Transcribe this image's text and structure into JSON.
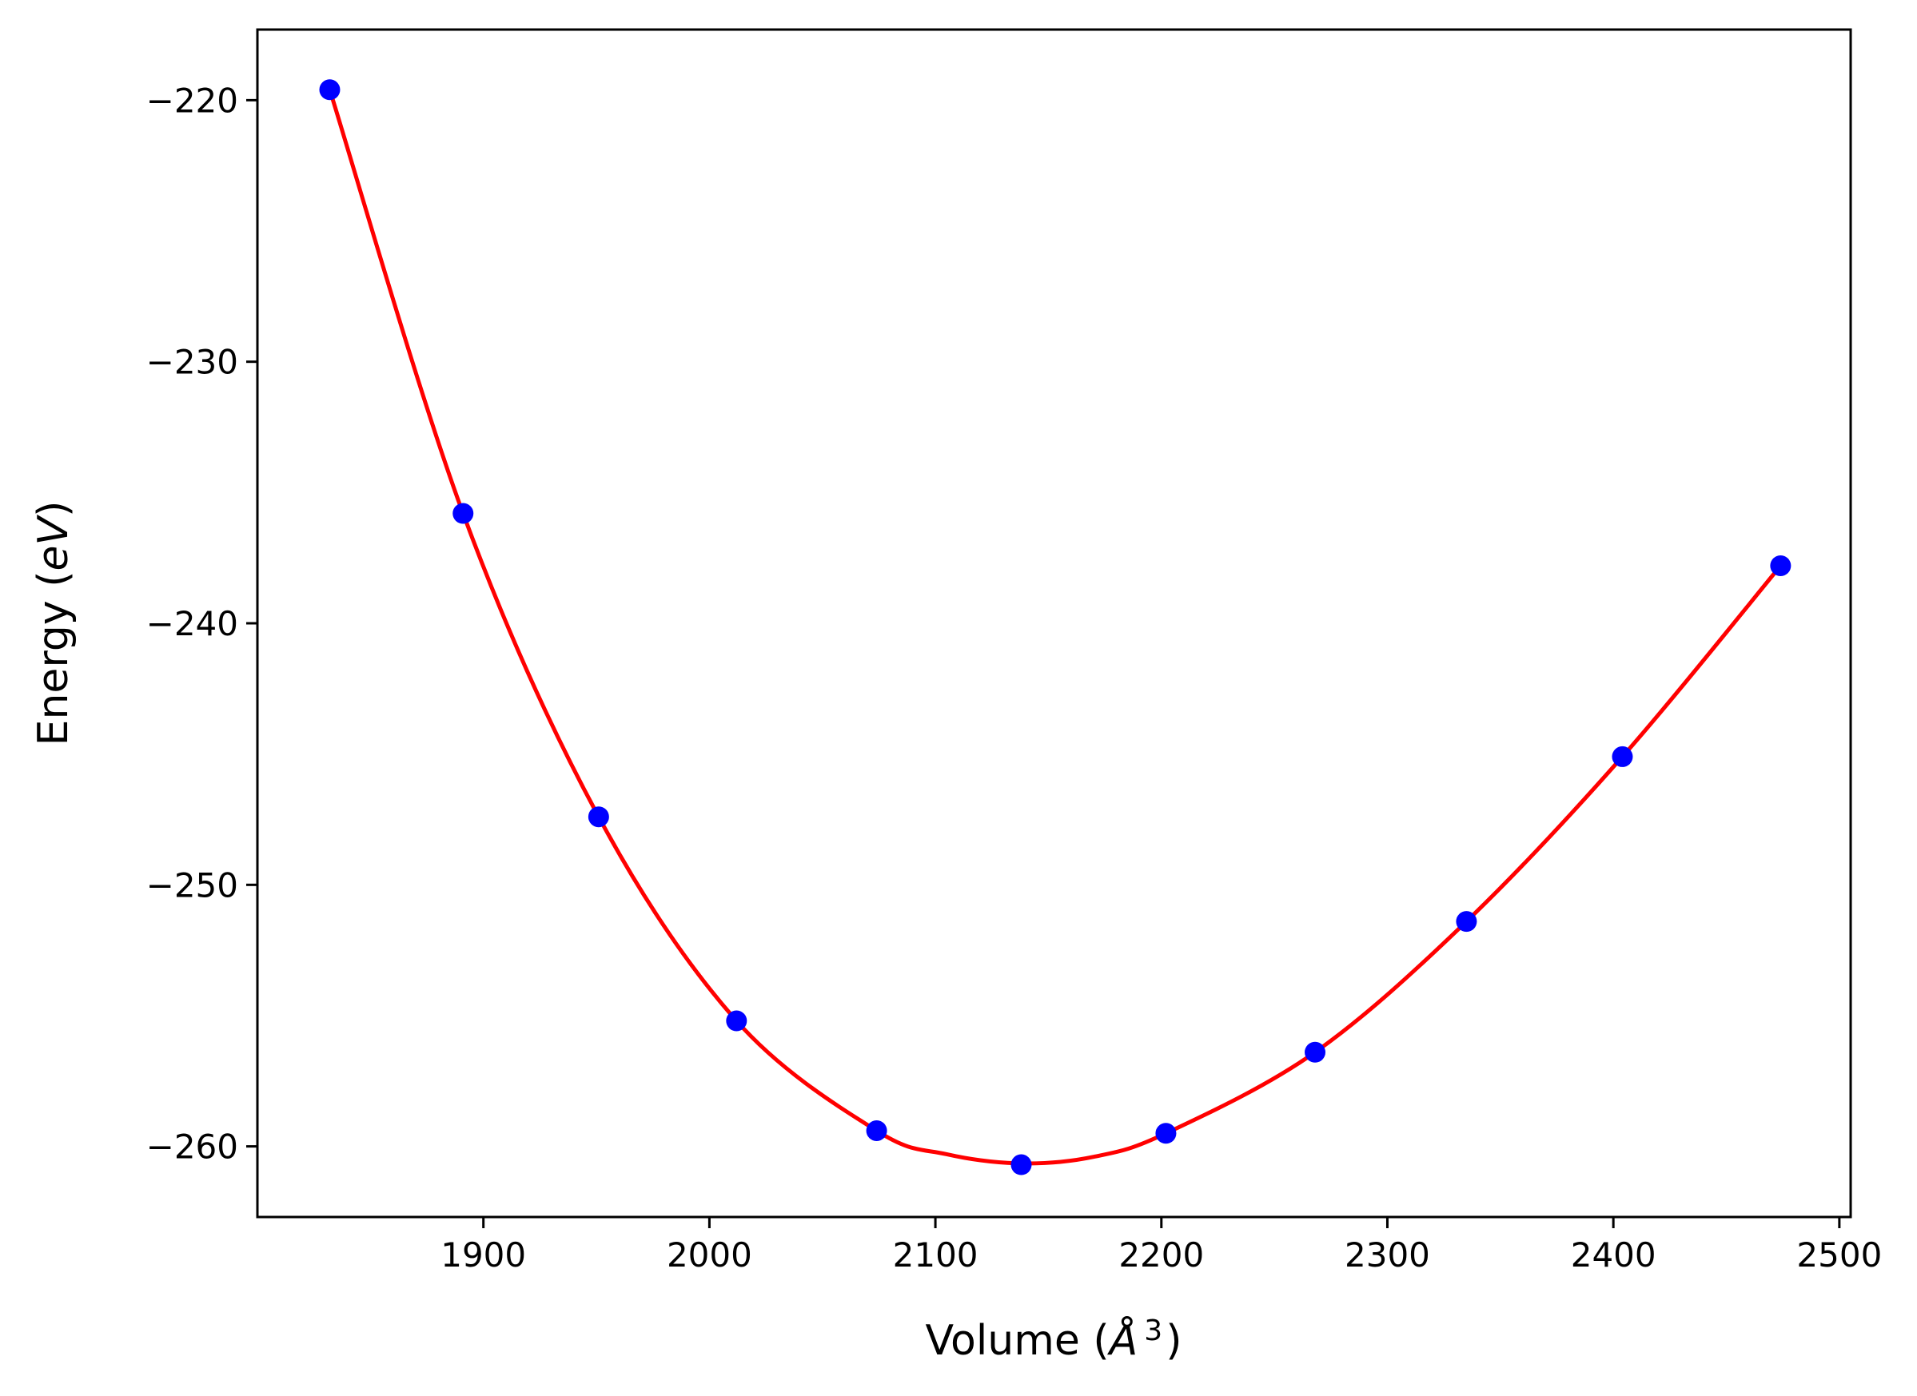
{
  "chart_data": {
    "type": "scatter",
    "title": "",
    "xlabel": {
      "prefix": "Volume (",
      "symbol": "Å",
      "superscript": "3",
      "suffix": ")"
    },
    "ylabel": {
      "prefix": "Energy (",
      "unit": "eV",
      "suffix": ")"
    },
    "xlim": [
      1800,
      2505
    ],
    "ylim": [
      -262.7,
      -217.3
    ],
    "xticks": [
      1900,
      2000,
      2100,
      2200,
      2300,
      2400,
      2500
    ],
    "xtick_labels": [
      "1900",
      "2000",
      "2100",
      "2200",
      "2300",
      "2400",
      "2500"
    ],
    "yticks": [
      -220,
      -230,
      -240,
      -250,
      -260
    ],
    "ytick_labels": [
      "−220",
      "−230",
      "−240",
      "−250",
      "−260"
    ],
    "grid": false,
    "series": [
      {
        "kind": "points",
        "color": "#0000ff",
        "x": [
          1832,
          1891,
          1951,
          2012,
          2074,
          2138,
          2202,
          2268,
          2335,
          2404,
          2474
        ],
        "y": [
          -219.6,
          -235.8,
          -247.4,
          -255.2,
          -259.4,
          -260.7,
          -259.5,
          -256.4,
          -251.4,
          -245.1,
          -237.8
        ]
      },
      {
        "kind": "fit-curve",
        "color": "#ff0000",
        "x": [
          1832,
          1891,
          1951,
          2012,
          2074,
          2105,
          2138,
          2170,
          2202,
          2268,
          2335,
          2404,
          2474
        ],
        "y": [
          -219.6,
          -235.8,
          -247.4,
          -255.2,
          -259.4,
          -260.3,
          -260.65,
          -260.4,
          -259.5,
          -256.4,
          -251.4,
          -245.1,
          -237.8
        ]
      }
    ]
  }
}
